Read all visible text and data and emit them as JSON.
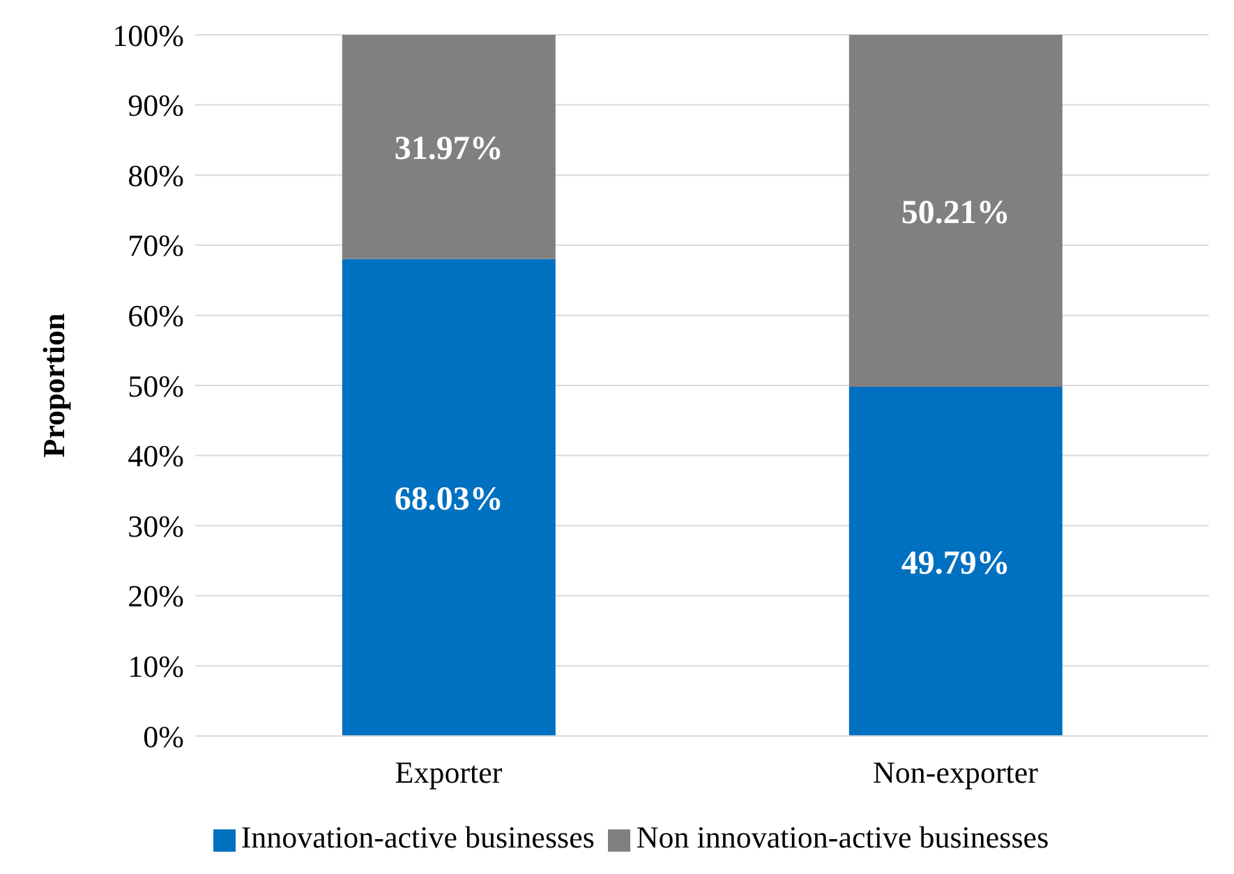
{
  "chart_data": {
    "type": "bar",
    "stacked": true,
    "ylabel": "Proportion",
    "categories": [
      "Exporter",
      "Non-exporter"
    ],
    "series": [
      {
        "name": "Innovation-active businesses",
        "color": "#0070c0",
        "values": [
          68.03,
          49.79
        ],
        "value_labels": [
          "68.03%",
          "49.79%"
        ]
      },
      {
        "name": "Non innovation-active businesses",
        "color": "#808080",
        "values": [
          31.97,
          50.21
        ],
        "value_labels": [
          "31.97%",
          "50.21%"
        ]
      }
    ],
    "ylim": [
      0,
      100
    ],
    "yticks": [
      {
        "value": 0,
        "label": "0%"
      },
      {
        "value": 10,
        "label": "10%"
      },
      {
        "value": 20,
        "label": "20%"
      },
      {
        "value": 30,
        "label": "30%"
      },
      {
        "value": 40,
        "label": "40%"
      },
      {
        "value": 50,
        "label": "50%"
      },
      {
        "value": 60,
        "label": "60%"
      },
      {
        "value": 70,
        "label": "70%"
      },
      {
        "value": 80,
        "label": "80%"
      },
      {
        "value": 90,
        "label": "90%"
      },
      {
        "value": 100,
        "label": "100%"
      }
    ],
    "grid": "y",
    "legend": "bottom"
  }
}
